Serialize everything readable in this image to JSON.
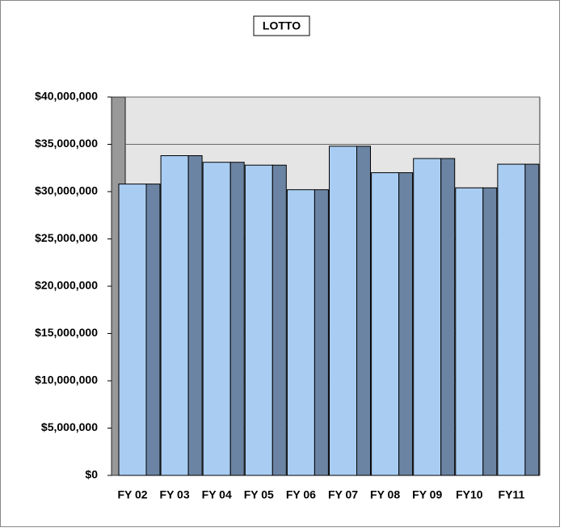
{
  "chart_data": {
    "type": "bar3d",
    "title": "LOTTO",
    "categories": [
      "FY 02",
      "FY 03",
      "FY 04",
      "FY 05",
      "FY 06",
      "FY 07",
      "FY 08",
      "FY 09",
      "FY10",
      "FY11"
    ],
    "values": [
      30800000,
      33800000,
      33100000,
      32800000,
      30200000,
      34800000,
      32000000,
      33500000,
      30400000,
      32900000
    ],
    "color": "#a9cdf2",
    "side_color": "#6b84a3",
    "ylim": [
      0,
      40000000
    ],
    "yticks": [
      {
        "value": 0,
        "label": "$0"
      },
      {
        "value": 5000000,
        "label": "$5,000,000"
      },
      {
        "value": 10000000,
        "label": "$10,000,000"
      },
      {
        "value": 15000000,
        "label": "$15,000,000"
      },
      {
        "value": 20000000,
        "label": "$20,000,000"
      },
      {
        "value": 25000000,
        "label": "$25,000,000"
      },
      {
        "value": 30000000,
        "label": "$30,000,000"
      },
      {
        "value": 35000000,
        "label": "$35,000,000"
      },
      {
        "value": 40000000,
        "label": "$40,000,000"
      }
    ],
    "grid": true
  }
}
